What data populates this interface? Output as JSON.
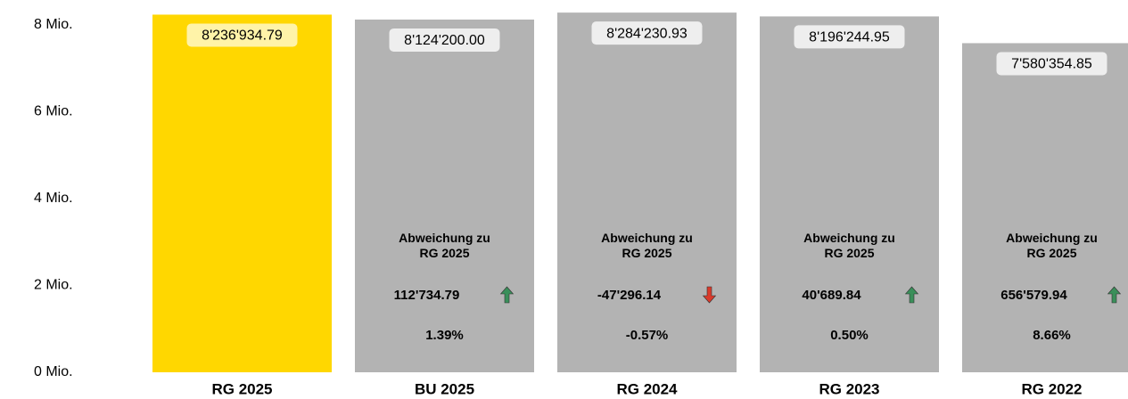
{
  "chart_data": {
    "type": "bar",
    "categories": [
      "RG 2025",
      "BU 2025",
      "RG 2024",
      "RG 2023",
      "RG 2022"
    ],
    "values": [
      8236934.79,
      8124200.0,
      8284230.93,
      8196244.95,
      7580354.85
    ],
    "value_labels": [
      "8'236'934.79",
      "8'124'200.00",
      "8'284'230.93",
      "8'196'244.95",
      "7'580'354.85"
    ],
    "colors": [
      "#ffd700",
      "#b3b3b3",
      "#b3b3b3",
      "#b3b3b3",
      "#b3b3b3"
    ],
    "ylim": [
      0,
      8000000
    ],
    "yticks": [
      {
        "value": 0,
        "label": "0 Mio."
      },
      {
        "value": 2000000,
        "label": "2 Mio."
      },
      {
        "value": 4000000,
        "label": "4 Mio."
      },
      {
        "value": 6000000,
        "label": "6 Mio."
      },
      {
        "value": 8000000,
        "label": "8 Mio."
      }
    ],
    "grid": false,
    "deviation_label": "Abweichung zu RG 2025",
    "deviations": [
      null,
      112734.79,
      -47296.14,
      40689.84,
      656579.94
    ],
    "deviation_labels": [
      null,
      "112'734.79",
      "-47'296.14",
      "40'689.84",
      "656'579.94"
    ],
    "deviation_percents": [
      null,
      1.39,
      -0.57,
      0.5,
      8.66
    ],
    "deviation_percent_labels": [
      null,
      "1.39%",
      "-0.57%",
      "0.50%",
      "8.66%"
    ],
    "up_color": "#3a8f5a",
    "down_color": "#d93a2b"
  }
}
